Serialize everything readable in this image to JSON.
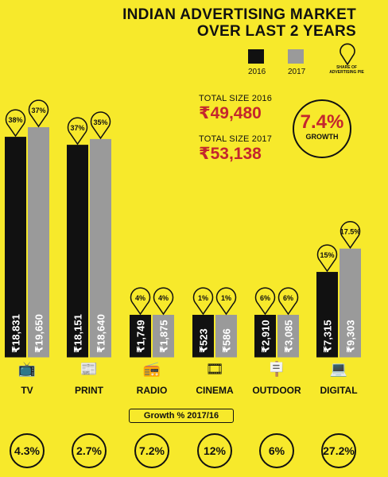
{
  "title_line1": "INDIAN ADVERTISING MARKET",
  "title_line2": "OVER LAST 2 YEARS",
  "legend": {
    "items": [
      {
        "label": "2016",
        "color": "#111111"
      },
      {
        "label": "2017",
        "color": "#9a9a9a"
      }
    ],
    "share_label": "SHARE OF ADVERTISING PIE",
    "share_icon": "location-pin-icon"
  },
  "totals": {
    "label_2016": "TOTAL SIZE 2016",
    "value_2016": "₹49,480",
    "label_2017": "TOTAL SIZE 2017",
    "value_2017": "₹53,138"
  },
  "growth": {
    "value": "7.4%",
    "label": "GROWTH"
  },
  "growth_header": "Growth % 2017/16",
  "colors": {
    "bg": "#f7e92b",
    "bar2016": "#111111",
    "bar2017": "#9a9a9a",
    "accent": "#c4262e"
  },
  "chart_data": {
    "type": "bar",
    "title": "INDIAN ADVERTISING MARKET OVER LAST 2 YEARS",
    "categories": [
      "TV",
      "PRINT",
      "RADIO",
      "CINEMA",
      "OUTDOOR",
      "DIGITAL"
    ],
    "icons": [
      "tv-icon",
      "newspaper-icon",
      "radio-icon",
      "cinema-icon",
      "billboard-icon",
      "laptop-icon"
    ],
    "series": [
      {
        "name": "2016",
        "values": [
          18831,
          18151,
          1749,
          523,
          2910,
          7315
        ],
        "value_labels": [
          "₹18,831",
          "₹18,151",
          "₹1,749",
          "₹523",
          "₹2,910",
          "₹7,315"
        ],
        "share_labels": [
          "38%",
          "37%",
          "4%",
          "1%",
          "6%",
          "15%"
        ]
      },
      {
        "name": "2017",
        "values": [
          19650,
          18640,
          1875,
          586,
          3085,
          9303
        ],
        "value_labels": [
          "₹19,650",
          "₹18,640",
          "₹1,875",
          "₹586",
          "₹3,085",
          "₹9,303"
        ],
        "share_labels": [
          "37%",
          "35%",
          "4%",
          "1%",
          "6%",
          "17.5%"
        ]
      }
    ],
    "growth_pct": [
      "4.3%",
      "2.7%",
      "7.2%",
      "12%",
      "6%",
      "27.2%"
    ],
    "share_pct": [
      [
        38,
        37
      ],
      [
        37,
        35
      ],
      [
        4,
        4
      ],
      [
        1,
        1
      ],
      [
        6,
        6
      ],
      [
        15,
        17.5
      ]
    ]
  }
}
